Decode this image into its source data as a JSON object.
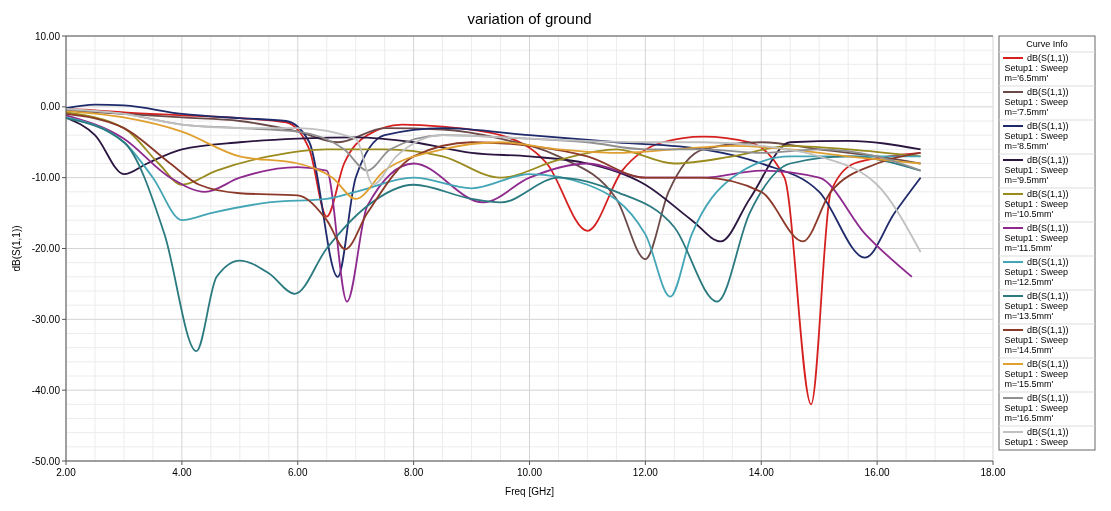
{
  "chart_data": {
    "type": "line",
    "title": "variation of ground",
    "xlabel": "Freq [GHz]",
    "ylabel": "dB(S(1,1))",
    "legend_title": "Curve Info",
    "legend": "right",
    "grid": true,
    "marker": "none",
    "line_style": "solid",
    "xlim": [
      2,
      18
    ],
    "ylim": [
      -50,
      10
    ],
    "xticks": [
      {
        "value": 2,
        "label": "2.00"
      },
      {
        "value": 4,
        "label": "4.00"
      },
      {
        "value": 6,
        "label": "6.00"
      },
      {
        "value": 8,
        "label": "8.00"
      },
      {
        "value": 10,
        "label": "10.00"
      },
      {
        "value": 12,
        "label": "12.00"
      },
      {
        "value": 14,
        "label": "14.00"
      },
      {
        "value": 16,
        "label": "16.00"
      },
      {
        "value": 18,
        "label": "18.00"
      }
    ],
    "yticks": [
      {
        "value": -50,
        "label": "-50.00"
      },
      {
        "value": -40,
        "label": "-40.00"
      },
      {
        "value": -30,
        "label": "-30.00"
      },
      {
        "value": -20,
        "label": "-20.00"
      },
      {
        "value": -10,
        "label": "-10.00"
      },
      {
        "value": 0,
        "label": "0.00"
      },
      {
        "value": 10,
        "label": "10.00"
      }
    ],
    "series": [
      {
        "name": "dB(S(1,1)) Setup1 : Sweep m='6.5mm'",
        "color": "#d62020",
        "x": [
          2,
          2.5,
          3,
          4,
          5,
          5.8,
          6.2,
          6.5,
          6.8,
          7.2,
          7.8,
          8.5,
          9.5,
          10.3,
          11,
          11.6,
          12.3,
          13,
          13.8,
          14.4,
          14.86,
          15.2,
          15.6,
          16.2,
          16.75
        ],
        "values": [
          -0.3,
          -0.5,
          -0.8,
          -1.2,
          -1.6,
          -2.2,
          -6,
          -15.5,
          -8,
          -4,
          -2.5,
          -2.8,
          -4,
          -8,
          -17.5,
          -9,
          -5,
          -4.2,
          -5,
          -10,
          -42,
          -12,
          -8,
          -7,
          -6.5
        ]
      },
      {
        "name": "dB(S(1,1)) Setup1 : Sweep m='7.5mm'",
        "color": "#6b4a4a",
        "x": [
          2,
          3,
          4,
          5,
          6,
          6.7,
          7.5,
          8.5,
          9.5,
          10.5,
          11.5,
          12,
          12.4,
          13,
          14,
          15,
          16,
          16.75
        ],
        "values": [
          -0.5,
          -1,
          -1.5,
          -2,
          -3.5,
          -5,
          -3,
          -3.2,
          -4.5,
          -7,
          -13,
          -21.5,
          -12,
          -6,
          -5,
          -6,
          -7,
          -8
        ]
      },
      {
        "name": "dB(S(1,1)) Setup1 : Sweep m='8.5mm'",
        "color": "#1f2a6b",
        "x": [
          2,
          2.5,
          3,
          4,
          5,
          5.8,
          6.2,
          6.69,
          7,
          7.5,
          8.5,
          10,
          11.5,
          13,
          14,
          15,
          15.79,
          16.3,
          16.75
        ],
        "values": [
          -0.2,
          0.3,
          0.2,
          -1,
          -1.6,
          -2,
          -5,
          -24,
          -10,
          -4,
          -3,
          -4,
          -5,
          -6,
          -8,
          -12,
          -21.3,
          -15,
          -10
        ]
      },
      {
        "name": "dB(S(1,1)) Setup1 : Sweep m='9.5mm'",
        "color": "#2b1640",
        "x": [
          2,
          2.5,
          3,
          3.4,
          4,
          5,
          6,
          7,
          8,
          9,
          10,
          11,
          12,
          12.8,
          13.3,
          13.8,
          14.5,
          15.5,
          16.75
        ],
        "values": [
          -1.5,
          -4,
          -9.5,
          -8,
          -6,
          -5,
          -4.5,
          -4.3,
          -5,
          -6.5,
          -7,
          -8,
          -11,
          -16,
          -19,
          -13,
          -5,
          -4.8,
          -6
        ]
      },
      {
        "name": "dB(S(1,1)) Setup1 : Sweep m='10.5mm'",
        "color": "#9a8b1e",
        "x": [
          2,
          3,
          3.6,
          4,
          4.6,
          5.5,
          6.5,
          7.5,
          8.5,
          9.5,
          10.5,
          11.5,
          12.5,
          13.5,
          14.5,
          15.5,
          16.75
        ],
        "values": [
          -0.8,
          -3,
          -8,
          -11,
          -9,
          -7,
          -6,
          -6,
          -7,
          -10,
          -7.5,
          -6,
          -8,
          -7,
          -5.5,
          -6,
          -7
        ]
      },
      {
        "name": "dB(S(1,1)) Setup1 : Sweep m='11.5mm'",
        "color": "#8e2a8e",
        "x": [
          2,
          3,
          3.8,
          4.4,
          5,
          6,
          6.5,
          6.85,
          7.2,
          8,
          9.2,
          10,
          11,
          12,
          13,
          14,
          15,
          15.8,
          16.6
        ],
        "values": [
          -1.2,
          -4.5,
          -10,
          -12,
          -10,
          -8.5,
          -9,
          -27.5,
          -14,
          -8,
          -13.5,
          -10,
          -8,
          -10,
          -10,
          -9,
          -10,
          -18,
          -24
        ]
      },
      {
        "name": "dB(S(1,1)) Setup1 : Sweep m='12.5mm'",
        "color": "#43a5b5",
        "x": [
          2,
          3,
          3.5,
          4,
          4.5,
          5.5,
          6.5,
          7,
          8,
          9,
          10,
          11,
          12,
          12.43,
          12.8,
          13.5,
          14.5,
          16.75
        ],
        "values": [
          -1.5,
          -5,
          -10,
          -16,
          -15,
          -13.5,
          -13,
          -12,
          -10,
          -11.5,
          -9.5,
          -11,
          -18,
          -26.8,
          -18,
          -10,
          -7,
          -7
        ]
      },
      {
        "name": "dB(S(1,1)) Setup1 : Sweep m='13.5mm'",
        "color": "#2a7a80",
        "x": [
          2,
          3,
          3.7,
          4.25,
          4.6,
          5,
          5.5,
          5.95,
          6.5,
          7.2,
          8,
          9,
          9.5,
          10.5,
          11.5,
          12.5,
          13.24,
          13.8,
          14.5,
          15.5,
          16.75
        ],
        "values": [
          -1.6,
          -5,
          -18,
          -34.5,
          -24,
          -21.7,
          -23.5,
          -26.4,
          -20,
          -14,
          -11,
          -13,
          -13.5,
          -10,
          -12,
          -17,
          -27.5,
          -15,
          -8,
          -7,
          -9
        ]
      },
      {
        "name": "dB(S(1,1)) Setup1 : Sweep m='14.5mm'",
        "color": "#8b3a2a",
        "x": [
          2,
          3,
          3.8,
          4.3,
          5,
          6,
          6.5,
          6.82,
          7.2,
          8,
          9,
          10,
          11,
          12,
          13,
          14,
          14.72,
          15.2,
          16,
          16.75
        ],
        "values": [
          -1,
          -3,
          -8,
          -11,
          -12.2,
          -12.5,
          -16,
          -20.1,
          -15,
          -7,
          -5,
          -5.5,
          -7,
          -10,
          -10,
          -12,
          -19,
          -12,
          -8,
          -6.5
        ]
      },
      {
        "name": "dB(S(1,1)) Setup1 : Sweep m='15.5mm'",
        "color": "#e0a030",
        "x": [
          2,
          3,
          4,
          5,
          6,
          6.6,
          7,
          7.5,
          8.5,
          9.5,
          10.5,
          11.5,
          12.5,
          13.5,
          14.5,
          15.5,
          16.75
        ],
        "values": [
          -0.6,
          -1.5,
          -3.5,
          -7,
          -8,
          -10,
          -13,
          -9,
          -6,
          -5,
          -6,
          -6.5,
          -6,
          -5.5,
          -6,
          -7,
          -8
        ]
      },
      {
        "name": "dB(S(1,1)) Setup1 : Sweep m='16.5mm'",
        "color": "#909090",
        "x": [
          2,
          3,
          4,
          5,
          6,
          6.8,
          7.2,
          7.6,
          8.5,
          10,
          11,
          12,
          13,
          14,
          15,
          16,
          16.75
        ],
        "values": [
          -0.4,
          -1,
          -2.5,
          -3,
          -3.5,
          -6,
          -9,
          -6,
          -4,
          -4.5,
          -5,
          -6,
          -6,
          -6.5,
          -6,
          -7,
          -9
        ]
      },
      {
        "name": "dB(S(1,1)) Setup1 : Sweep",
        "color": "#c0c0c0",
        "x": [
          2,
          3,
          4,
          5,
          6,
          7,
          7.3,
          7.7,
          8.5,
          10,
          12,
          13,
          14,
          15,
          16,
          16.75
        ],
        "values": [
          -0.3,
          -1,
          -2.5,
          -3,
          -3,
          -4.5,
          -11,
          -7,
          -4,
          -4.5,
          -5,
          -5,
          -5.5,
          -7,
          -11,
          -20.5
        ]
      }
    ]
  }
}
